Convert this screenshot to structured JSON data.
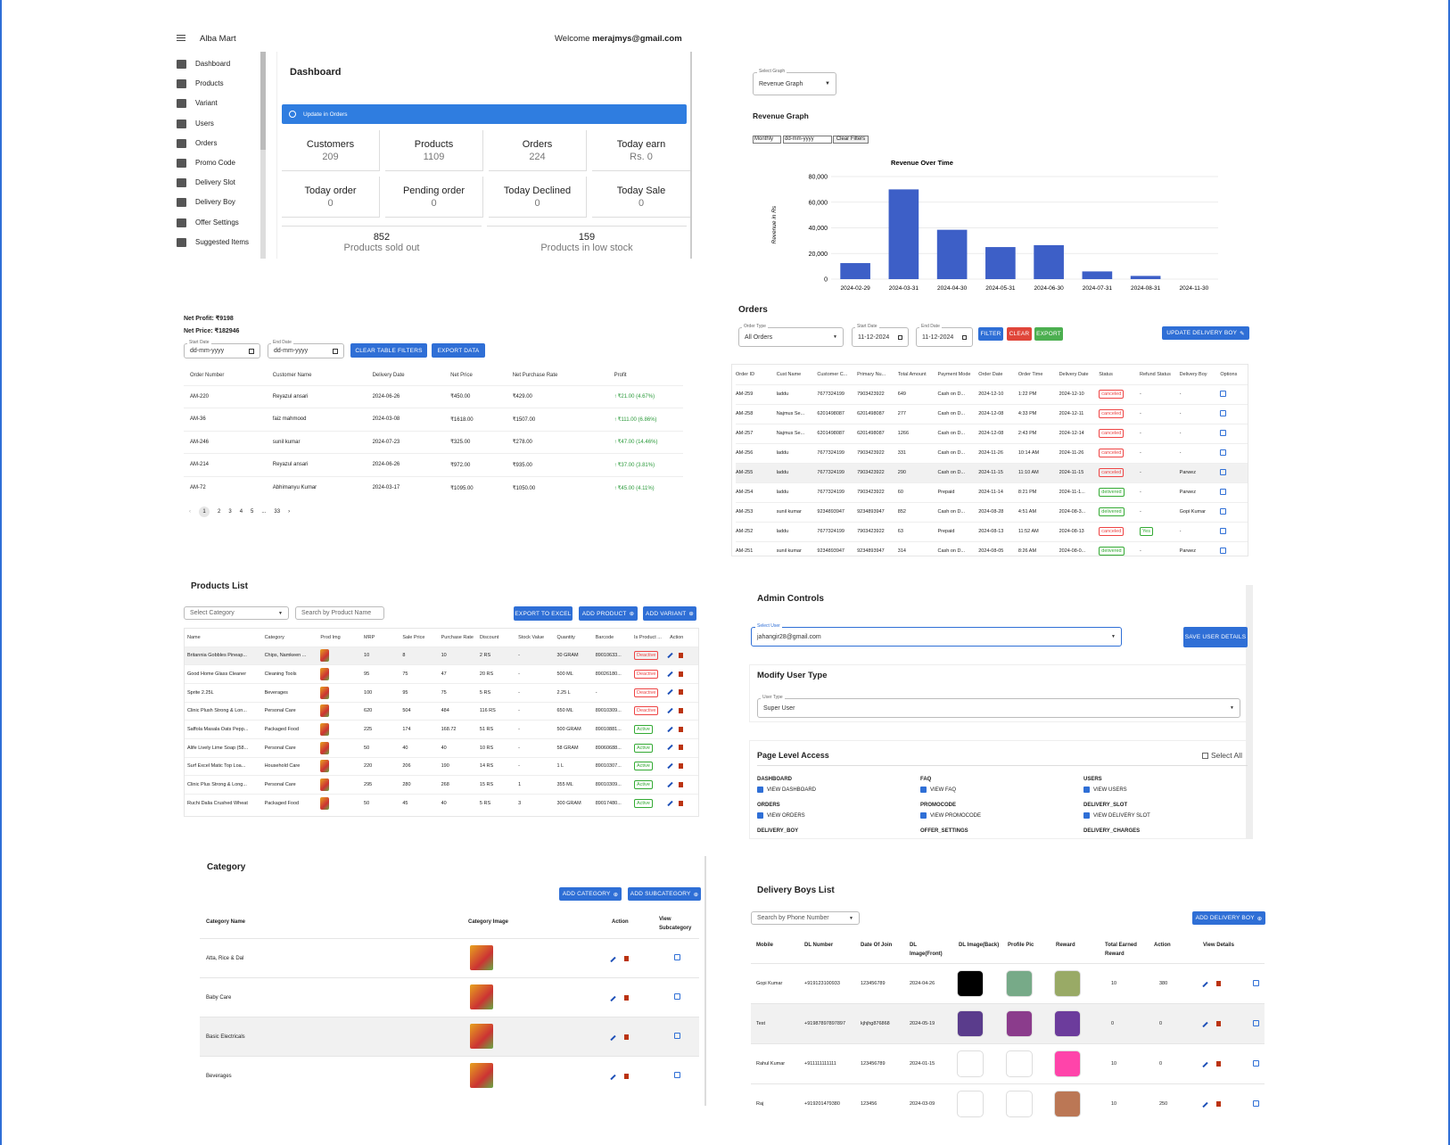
{
  "app": {
    "title": "Alba Mart",
    "welcome": "Welcome ",
    "email": "merajmys@gmail.com"
  },
  "sidebar": {
    "items": [
      {
        "label": "Dashboard",
        "icon": "dashboard-icon"
      },
      {
        "label": "Products",
        "icon": "cart-icon"
      },
      {
        "label": "Variant",
        "icon": "variant-icon"
      },
      {
        "label": "Users",
        "icon": "users-icon"
      },
      {
        "label": "Orders",
        "icon": "orders-icon"
      },
      {
        "label": "Promo Code",
        "icon": "promo-icon"
      },
      {
        "label": "Delivery Slot",
        "icon": "truck-icon"
      },
      {
        "label": "Delivery Boy",
        "icon": "person-add-icon"
      },
      {
        "label": "Offer Settings",
        "icon": "tag-icon"
      },
      {
        "label": "Suggested Items",
        "icon": "store-icon"
      }
    ]
  },
  "dashboard": {
    "title": "Dashboard",
    "alert": "Update in Orders",
    "cards": [
      {
        "label": "Customers",
        "value": "209"
      },
      {
        "label": "Products",
        "value": "1109"
      },
      {
        "label": "Orders",
        "value": "224"
      },
      {
        "label": "Today earn",
        "value": "Rs. 0"
      },
      {
        "label": "Today order",
        "value": "0"
      },
      {
        "label": "Pending order",
        "value": "0"
      },
      {
        "label": "Today Declined",
        "value": "0"
      },
      {
        "label": "Today Sale",
        "value": "0"
      }
    ],
    "wide": [
      {
        "value": "852",
        "label": "Products sold out"
      },
      {
        "value": "159",
        "label": "Products in low stock"
      }
    ]
  },
  "revenue": {
    "select_label": "Select Graph",
    "select_value": "Revenue Graph",
    "title": "Revenue Graph",
    "period": "Monthly",
    "date_placeholder": "dd-mm-yyyy",
    "clear": "Clear Filters"
  },
  "chart_data": {
    "type": "bar",
    "title": "Revenue Over Time",
    "ylabel": "Revenue in Rs",
    "categories": [
      "2024-02-29",
      "2024-03-31",
      "2024-04-30",
      "2024-05-31",
      "2024-06-30",
      "2024-07-31",
      "2024-08-31",
      "2024-11-30"
    ],
    "values": [
      12500,
      70000,
      38500,
      25000,
      26500,
      6000,
      2500,
      0
    ],
    "ylim": [
      0,
      80000
    ],
    "yticks": [
      "0",
      "20,000",
      "40,000",
      "60,000",
      "80,000"
    ],
    "color": "#3d5fc7"
  },
  "profit": {
    "net_profit": "Net Profit: ₹9198",
    "net_price": "Net Price: ₹182946",
    "start_label": "Start Date",
    "end_label": "End Date",
    "date_placeholder": "dd-mm-yyyy",
    "clear": "CLEAR TABLE FILTERS",
    "export": "EXPORT DATA",
    "headers": [
      "Order Number",
      "Customer Name",
      "Delivery Date",
      "Net Price",
      "Net Purchase Rate",
      "Profit"
    ],
    "rows": [
      [
        "AM-220",
        "Reyazul ansari",
        "2024-06-26",
        "₹450.00",
        "₹429.00",
        "₹21.00 (4.67%)"
      ],
      [
        "AM-36",
        "faiz mahmood",
        "2024-03-08",
        "₹1618.00",
        "₹1507.00",
        "₹111.00 (6.86%)"
      ],
      [
        "AM-246",
        "sunil kumar",
        "2024-07-23",
        "₹325.00",
        "₹278.00",
        "₹47.00 (14.46%)"
      ],
      [
        "AM-214",
        "Reyazul ansari",
        "2024-06-26",
        "₹972.00",
        "₹935.00",
        "₹37.00 (3.81%)"
      ],
      [
        "AM-72",
        "Abhimanyu Kumar",
        "2024-03-17",
        "₹1095.00",
        "₹1050.00",
        "₹45.00 (4.11%)"
      ]
    ],
    "pages": [
      "1",
      "2",
      "3",
      "4",
      "5",
      "...",
      "33"
    ]
  },
  "orders": {
    "title": "Orders",
    "type_label": "Order Type",
    "type_value": "All Orders",
    "start_label": "Start Date",
    "start_value": "11-12-2024",
    "end_label": "End Date",
    "end_value": "11-12-2024",
    "filter": "FILTER",
    "clear": "CLEAR",
    "export": "EXPORT",
    "update": "UPDATE DELIVERY BOY",
    "headers": [
      "Order ID",
      "Cust Name",
      "Customer C...",
      "Primary Nu...",
      "Total Amount",
      "Payment Mode",
      "Order Date",
      "Order Time",
      "Delivery Date",
      "Status",
      "Refund Status",
      "Delivery Boy",
      "Options"
    ],
    "rows": [
      [
        "AM-259",
        "laddu",
        "7677324199",
        "7903423922",
        "649",
        "Cash on D...",
        "2024-12-10",
        "1:22 PM",
        "2024-12-10",
        "canceled",
        "-",
        "-"
      ],
      [
        "AM-258",
        "Najmus Se...",
        "6201498087",
        "6201498087",
        "277",
        "Cash on D...",
        "2024-12-08",
        "4:33 PM",
        "2024-12-11",
        "canceled",
        "-",
        "-"
      ],
      [
        "AM-257",
        "Najmus Se...",
        "6201498087",
        "6201498087",
        "1266",
        "Cash on D...",
        "2024-12-08",
        "2:43 PM",
        "2024-12-14",
        "canceled",
        "-",
        "-"
      ],
      [
        "AM-256",
        "laddu",
        "7677324199",
        "7903423922",
        "331",
        "Cash on D...",
        "2024-11-26",
        "10:14 AM",
        "2024-11-26",
        "canceled",
        "-",
        "-"
      ],
      [
        "AM-255",
        "laddu",
        "7677324199",
        "7903423922",
        "290",
        "Cash on D...",
        "2024-11-15",
        "11:10 AM",
        "2024-11-15",
        "canceled",
        "-",
        "Parwez"
      ],
      [
        "AM-254",
        "laddu",
        "7677324199",
        "7903423922",
        "60",
        "Prepaid",
        "2024-11-14",
        "8:21 PM",
        "2024-11-1...",
        "delivered",
        "-",
        "Parwez"
      ],
      [
        "AM-253",
        "sunil kumar",
        "9234893947",
        "9234893947",
        "852",
        "Cash on D...",
        "2024-08-28",
        "4:51 AM",
        "2024-08-3...",
        "delivered",
        "-",
        "Gopi Kumar"
      ],
      [
        "AM-252",
        "laddu",
        "7677324199",
        "7903423922",
        "63",
        "Prepaid",
        "2024-08-13",
        "11:52 AM",
        "2024-08-13",
        "canceled",
        "Yes",
        "-"
      ],
      [
        "AM-251",
        "sunil kumar",
        "9234893947",
        "9234893947",
        "314",
        "Cash on D...",
        "2024-08-05",
        "8:26 AM",
        "2024-08-0...",
        "delivered",
        "-",
        "Parwez"
      ]
    ]
  },
  "products": {
    "title": "Products List",
    "category_placeholder": "Select Category",
    "search_placeholder": "Search by Product Name",
    "export": "EXPORT TO EXCEL",
    "add_product": "ADD PRODUCT",
    "add_variant": "ADD VARIANT",
    "headers": [
      "Name",
      "Category",
      "Prod Img",
      "MRP",
      "Sale Price",
      "Purchase Rate",
      "Discount",
      "Stock Value",
      "Quantity",
      "Barcode",
      "Is Product ...",
      "Action"
    ],
    "rows": [
      [
        "Britannia Gobbles Pineap...",
        "Chips, Namkeen ...",
        "10",
        "8",
        "10",
        "2 RS",
        "-",
        "30 GRAM",
        "89010633...",
        "Deactive"
      ],
      [
        "Good Home Glass Cleaner",
        "Cleaning Tools",
        "95",
        "75",
        "47",
        "20 RS",
        "-",
        "500 ML",
        "89026180...",
        "Deactive"
      ],
      [
        "Sprite 2.25L",
        "Beverages",
        "100",
        "95",
        "75",
        "5 RS",
        "-",
        "2.25 L",
        "-",
        "Deactive"
      ],
      [
        "Clinic Plush Strong & Lon...",
        "Personal Care",
        "620",
        "504",
        "484",
        "116 RS",
        "-",
        "650 ML",
        "89010309...",
        "Deactive"
      ],
      [
        "Saffola Masala Oats Pepp...",
        "Packaged Food",
        "225",
        "174",
        "168.72",
        "51 RS",
        "-",
        "500 GRAM",
        "89010881...",
        "Active"
      ],
      [
        "Alife Lively Lime Soap (58...",
        "Personal Care",
        "50",
        "40",
        "40",
        "10 RS",
        "-",
        "58 GRAM",
        "89060688...",
        "Active"
      ],
      [
        "Surf Excel Matic Top Loa...",
        "Household Care",
        "220",
        "206",
        "190",
        "14 RS",
        "-",
        "1 L",
        "89010307...",
        "Active"
      ],
      [
        "Clinic Plus Strong & Long...",
        "Personal Care",
        "295",
        "280",
        "268",
        "15 RS",
        "1",
        "355 ML",
        "89010309...",
        "Active"
      ],
      [
        "Ruchi Dalia Crushed Wheat",
        "Packaged Food",
        "50",
        "45",
        "40",
        "5 RS",
        "3",
        "300 GRAM",
        "89017480...",
        "Active"
      ]
    ]
  },
  "admin": {
    "title": "Admin Controls",
    "user_label": "Select User",
    "user_value": "jahangir28@gmail.com",
    "save": "SAVE USER DETAILS",
    "modify_title": "Modify User Type",
    "type_label": "User Type",
    "type_value": "Super User",
    "access_title": "Page Level Access",
    "select_all": "Select All",
    "groups": [
      {
        "name": "DASHBOARD",
        "item": "VIEW DASHBOARD"
      },
      {
        "name": "FAQ",
        "item": "VIEW FAQ"
      },
      {
        "name": "USERS",
        "item": "VIEW USERS"
      },
      {
        "name": "ORDERS",
        "item": "VIEW ORDERS"
      },
      {
        "name": "PROMOCODE",
        "item": "VIEW PROMOCODE"
      },
      {
        "name": "DELIVERY_SLOT",
        "item": "VIEW DELIVERY SLOT"
      },
      {
        "name": "DELIVERY_BOY",
        "item": ""
      },
      {
        "name": "OFFER_SETTINGS",
        "item": ""
      },
      {
        "name": "DELIVERY_CHARGES",
        "item": ""
      }
    ]
  },
  "category": {
    "title": "Category",
    "add_category": "ADD CATEGORY",
    "add_sub": "ADD SUBCATEGORY",
    "headers": [
      "Category Name",
      "Category Image",
      "Action",
      "View Subcategory"
    ],
    "rows": [
      "Atta, Rice & Dal",
      "Baby Care",
      "Basic Electricals",
      "Beverages"
    ]
  },
  "delivery": {
    "title": "Delivery Boys List",
    "search_placeholder": "Search by Phone Number",
    "add": "ADD DELIVERY BOY",
    "headers": [
      "Mobile",
      "DL Number",
      "Date Of Join",
      "DL Image(Front)",
      "DL Image(Back)",
      "Profile Pic",
      "Reward",
      "Total Earned Reward",
      "Action",
      "View Details"
    ],
    "rows": [
      [
        "Gopi Kumar",
        "+919123100933",
        "123456789",
        "2024-04-26",
        "10",
        "380"
      ],
      [
        "Test",
        "+91987897897897",
        "kjhjhg876868",
        "2024-05-19",
        "0",
        "0"
      ],
      [
        "Rahul Kumar",
        "+911111111111",
        "123456789",
        "2024-01-15",
        "10",
        "0"
      ],
      [
        "Raj",
        "+919201479380",
        "123456",
        "2024-03-09",
        "10",
        "250"
      ]
    ]
  }
}
